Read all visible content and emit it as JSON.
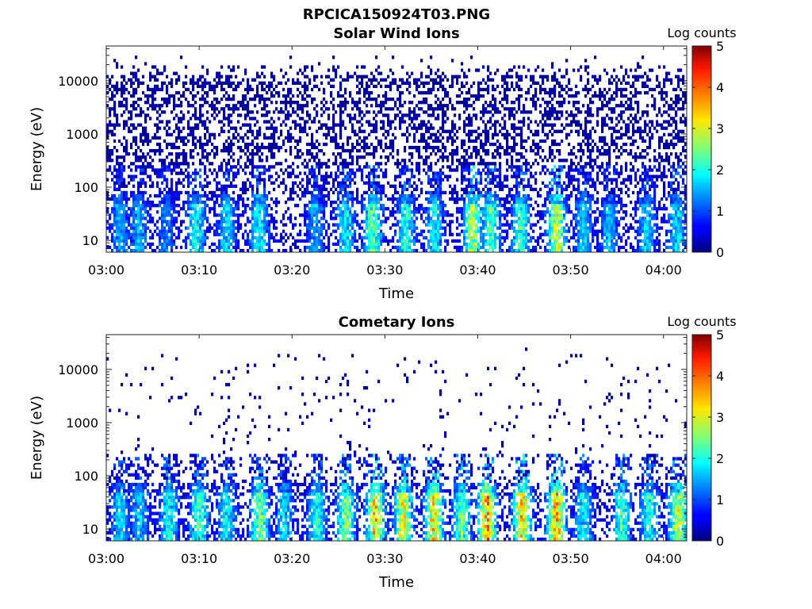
{
  "figure": {
    "title": "RPCICA150924T03.PNG"
  },
  "chart_data": [
    {
      "type": "heatmap",
      "title": "Solar Wind Ions",
      "xlabel": "Time",
      "ylabel": "Energy (eV)",
      "x_ticks": [
        "03:00",
        "03:10",
        "03:20",
        "03:30",
        "03:40",
        "03:50",
        "04:00"
      ],
      "x_tick_minutes": [
        0,
        10,
        20,
        30,
        40,
        50,
        60
      ],
      "xlim_minutes": [
        0,
        62.5
      ],
      "y_scale": "log",
      "ylim": [
        6,
        45000
      ],
      "y_ticks": [
        "10",
        "100",
        "1000",
        "10000"
      ],
      "y_tick_values": [
        10,
        100,
        1000,
        10000
      ],
      "colorbar": {
        "label": "Log counts",
        "ticks": [
          "0",
          "1",
          "2",
          "3",
          "4",
          "5"
        ],
        "range": [
          0,
          5
        ],
        "colormap": "jet"
      },
      "features": {
        "background_density": 0.42,
        "low_energy_bursts_minutes": [
          1.5,
          3.5,
          6.5,
          9.7,
          13.0,
          16.5,
          22.5,
          25.8,
          28.7,
          32.3,
          35.3,
          39.5,
          41.4,
          44.6,
          48.5,
          51.4,
          54.2,
          58.2,
          61.4
        ],
        "burst_peak_log_counts": [
          1.3,
          1.4,
          1.0,
          2.0,
          1.6,
          2.0,
          1.3,
          1.8,
          2.5,
          2.0,
          1.8,
          2.9,
          2.3,
          2.2,
          3.1,
          1.6,
          1.4,
          1.5,
          1.6
        ]
      }
    },
    {
      "type": "heatmap",
      "title": "Cometary Ions",
      "xlabel": "Time",
      "ylabel": "Energy (eV)",
      "x_ticks": [
        "03:00",
        "03:10",
        "03:20",
        "03:30",
        "03:40",
        "03:50",
        "04:00"
      ],
      "x_tick_minutes": [
        0,
        10,
        20,
        30,
        40,
        50,
        60
      ],
      "xlim_minutes": [
        0,
        62.5
      ],
      "y_scale": "log",
      "ylim": [
        6,
        45000
      ],
      "y_ticks": [
        "10",
        "100",
        "1000",
        "10000"
      ],
      "y_tick_values": [
        10,
        100,
        1000,
        10000
      ],
      "colorbar": {
        "label": "Log counts",
        "ticks": [
          "0",
          "1",
          "2",
          "3",
          "4",
          "5"
        ],
        "range": [
          0,
          5
        ],
        "colormap": "jet"
      },
      "features": {
        "background_density": 0.03,
        "low_energy_bursts_minutes": [
          1.5,
          3.6,
          6.8,
          10.0,
          13.0,
          16.5,
          19.2,
          22.7,
          25.8,
          29.0,
          32.0,
          35.3,
          38.3,
          41.0,
          44.8,
          48.5,
          51.4,
          55.5,
          58.5,
          61.6
        ],
        "burst_peak_log_counts": [
          1.6,
          1.5,
          2.0,
          2.2,
          1.8,
          2.7,
          1.6,
          2.0,
          2.6,
          3.5,
          3.2,
          3.5,
          2.5,
          3.8,
          3.6,
          3.8,
          1.8,
          2.2,
          2.0,
          3.0
        ]
      }
    }
  ]
}
